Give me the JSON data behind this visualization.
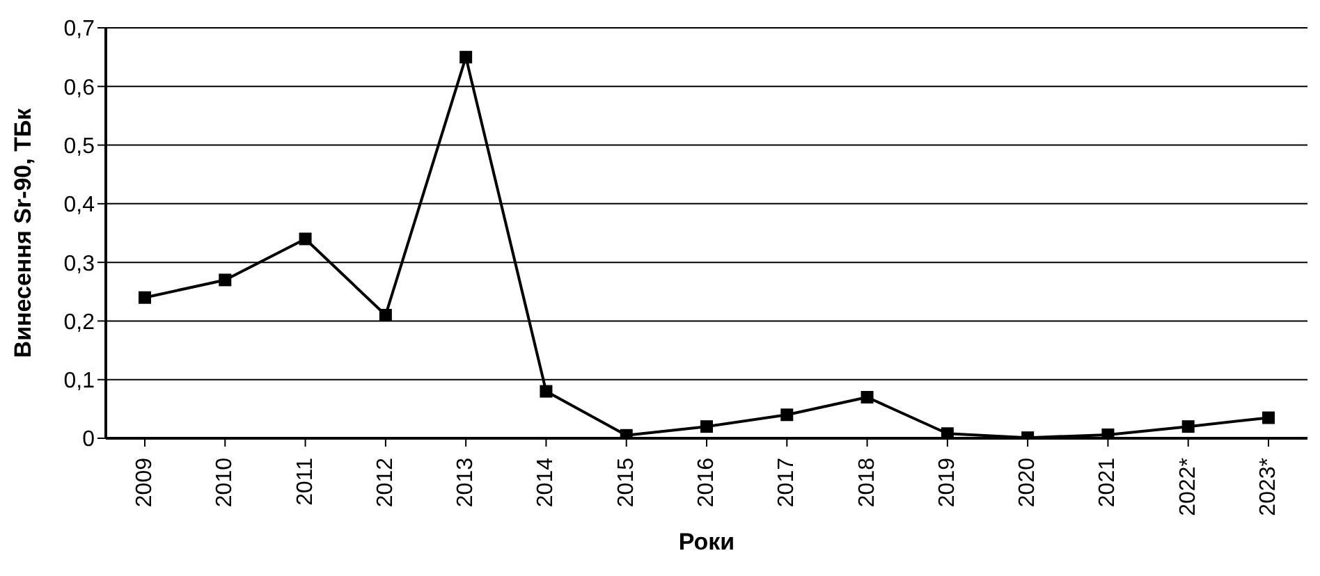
{
  "chart_data": {
    "type": "line",
    "xlabel": "Роки",
    "ylabel": "Винесення Sr-90, ТБк",
    "categories": [
      "2009",
      "2010",
      "2011",
      "2012",
      "2013",
      "2014",
      "2015",
      "2016",
      "2017",
      "2018",
      "2019",
      "2020",
      "2021",
      "2022*",
      "2023*"
    ],
    "series": [
      {
        "color": "#000000",
        "values": [
          0.24,
          0.27,
          0.34,
          0.21,
          0.65,
          0.08,
          0.005,
          0.02,
          0.04,
          0.07,
          0.008,
          0.001,
          0.006,
          0.02,
          0.035
        ]
      }
    ],
    "ylim": [
      0,
      0.7
    ],
    "yticks": [
      {
        "value": 0,
        "label": "0"
      },
      {
        "value": 0.1,
        "label": "0,1"
      },
      {
        "value": 0.2,
        "label": "0,2"
      },
      {
        "value": 0.3,
        "label": "0,3"
      },
      {
        "value": 0.4,
        "label": "0,4"
      },
      {
        "value": 0.5,
        "label": "0,5"
      },
      {
        "value": 0.6,
        "label": "0,6"
      },
      {
        "value": 0.7,
        "label": "0,7"
      }
    ],
    "grid": "y",
    "legend": false,
    "marker": "square",
    "line_style": "solid"
  }
}
